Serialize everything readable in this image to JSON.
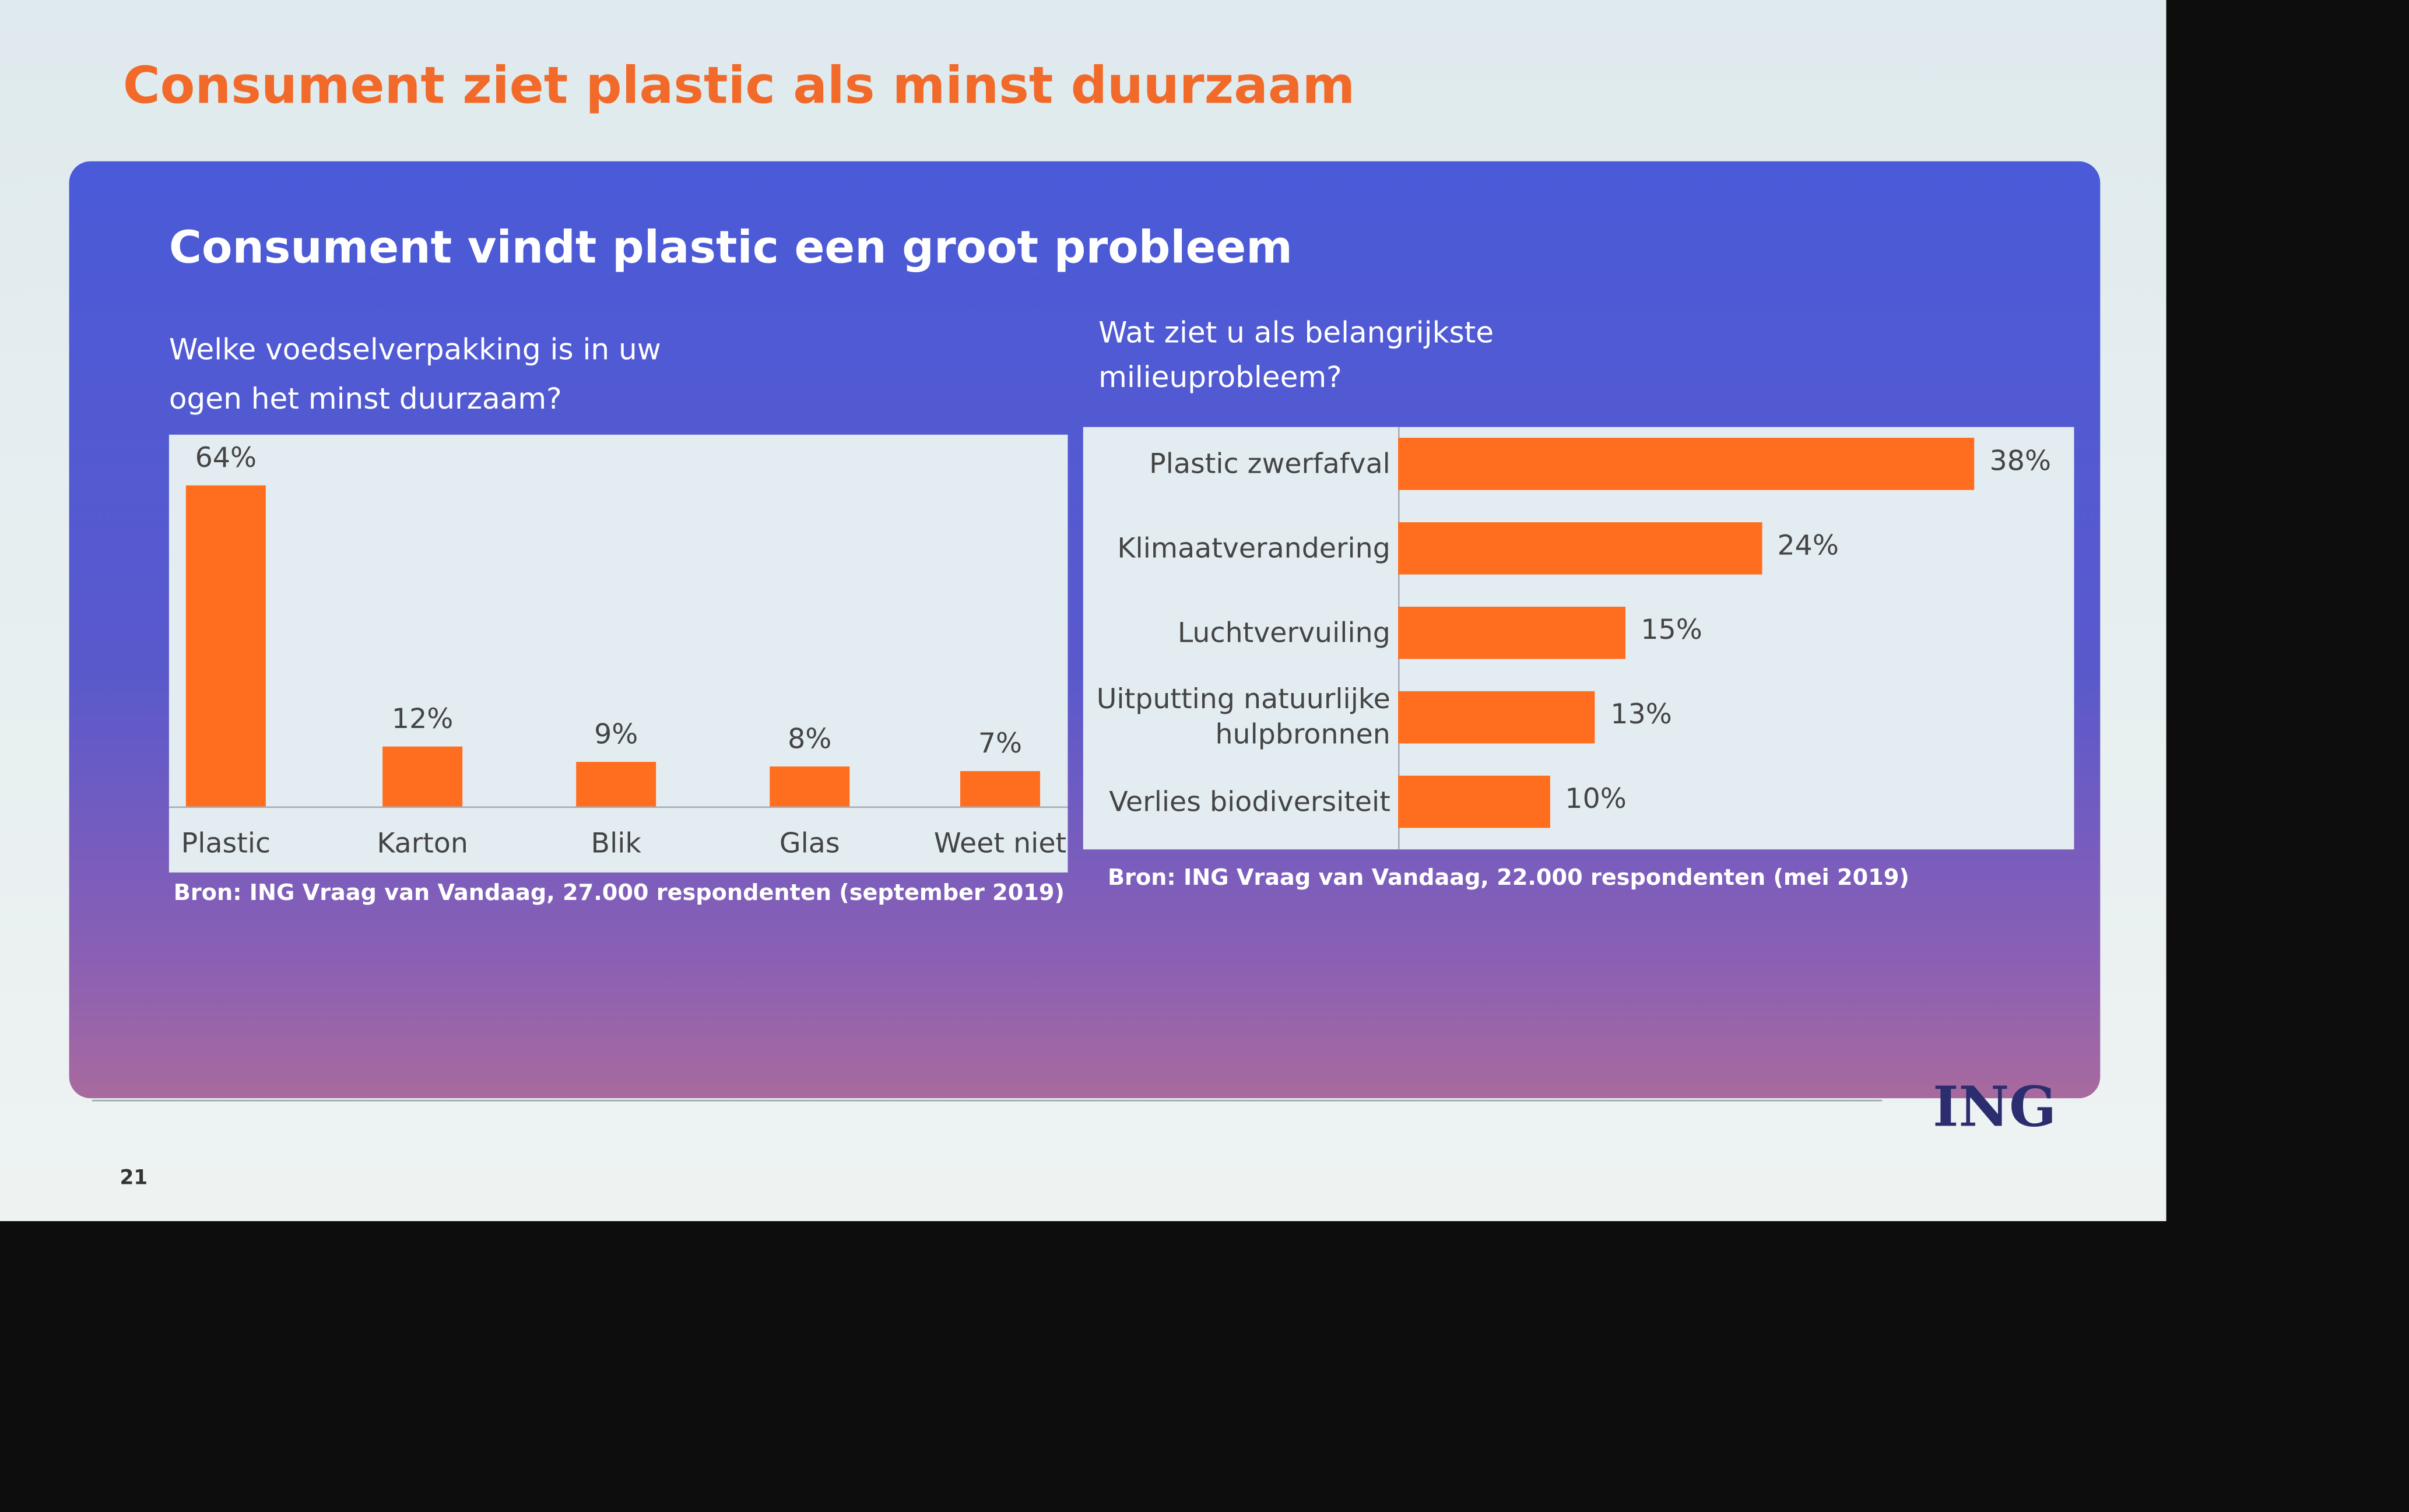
{
  "title": "Consument ziet plastic als minst duurzaam",
  "panel_title": "Consument vindt plastic een groot probleem",
  "page_number": "21",
  "logo": "ING",
  "chart_data": [
    {
      "type": "bar",
      "orientation": "vertical",
      "title": "Welke voedselverpakking is in uw ogen het minst duurzaam?",
      "categories": [
        "Plastic",
        "Karton",
        "Blik",
        "Glas",
        "Weet niet"
      ],
      "values": [
        64,
        12,
        9,
        8,
        7
      ],
      "value_labels": [
        "64%",
        "12%",
        "9%",
        "8%",
        "7%"
      ],
      "color": "#ff6e1f",
      "source": "Bron: ING Vraag van Vandaag, 27.000 respondenten (september 2019)"
    },
    {
      "type": "bar",
      "orientation": "horizontal",
      "title": "Wat ziet u als belangrijkste milieuprobleem?",
      "categories": [
        "Plastic zwerfafval",
        "Klimaatverandering",
        "Luchtvervuiling",
        "Uitputting natuurlijke hulpbronnen",
        "Verlies biodiversiteit"
      ],
      "values": [
        38,
        24,
        15,
        13,
        10
      ],
      "value_labels": [
        "38%",
        "24%",
        "15%",
        "13%",
        "10%"
      ],
      "color": "#ff6e1f",
      "source": "Bron: ING Vraag van Vandaag, 22.000 respondenten (mei 2019)"
    }
  ]
}
